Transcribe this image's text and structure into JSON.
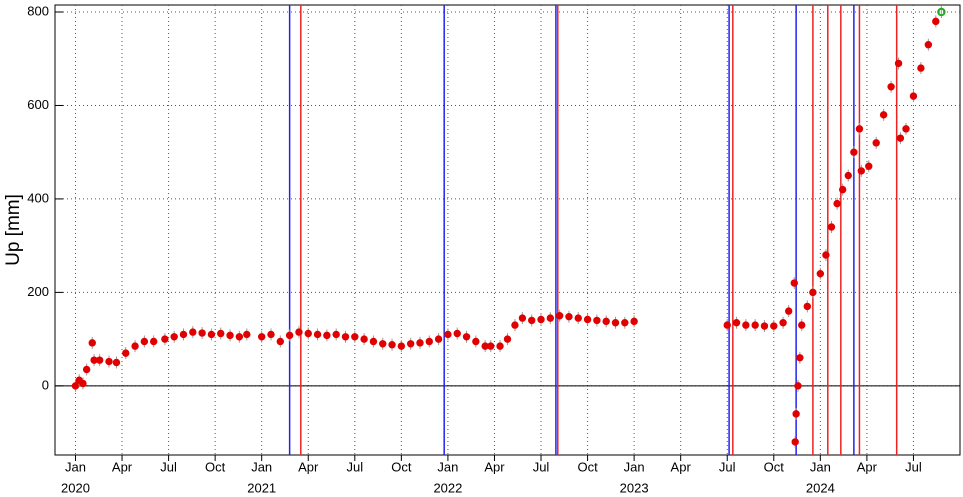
{
  "chart_data": {
    "type": "scatter",
    "y_label": "Up [mm]",
    "x": [
      2020.0,
      2020.02,
      2020.04,
      2020.06,
      2020.09,
      2020.1,
      2020.13,
      2020.18,
      2020.22,
      2020.27,
      2020.32,
      2020.37,
      2020.42,
      2020.48,
      2020.53,
      2020.58,
      2020.63,
      2020.68,
      2020.73,
      2020.78,
      2020.83,
      2020.88,
      2020.92,
      2021.0,
      2021.05,
      2021.1,
      2021.15,
      2021.2,
      2021.25,
      2021.3,
      2021.35,
      2021.4,
      2021.45,
      2021.5,
      2021.55,
      2021.6,
      2021.65,
      2021.7,
      2021.75,
      2021.8,
      2021.85,
      2021.9,
      2021.95,
      2022.0,
      2022.05,
      2022.1,
      2022.15,
      2022.2,
      2022.23,
      2022.28,
      2022.32,
      2022.36,
      2022.4,
      2022.45,
      2022.5,
      2022.55,
      2022.6,
      2022.65,
      2022.7,
      2022.75,
      2022.8,
      2022.85,
      2022.9,
      2022.95,
      2023.0,
      2023.5,
      2023.55,
      2023.6,
      2023.65,
      2023.7,
      2023.75,
      2023.8,
      2023.83,
      2023.86,
      2023.865,
      2023.87,
      2023.88,
      2023.89,
      2023.9,
      2023.93,
      2023.96,
      2024.0,
      2024.03,
      2024.06,
      2024.09,
      2024.12,
      2024.15,
      2024.18,
      2024.21,
      2024.22,
      2024.26,
      2024.3,
      2024.34,
      2024.38,
      2024.42,
      2024.43,
      2024.46,
      2024.5,
      2024.54,
      2024.58,
      2024.62,
      2024.65
    ],
    "values": [
      0,
      12,
      5,
      35,
      92,
      55,
      55,
      52,
      50,
      70,
      85,
      95,
      95,
      100,
      105,
      110,
      115,
      113,
      110,
      112,
      108,
      105,
      110,
      105,
      110,
      95,
      108,
      115,
      112,
      110,
      108,
      110,
      105,
      105,
      100,
      95,
      90,
      88,
      85,
      90,
      92,
      95,
      100,
      110,
      112,
      105,
      95,
      85,
      85,
      85,
      100,
      130,
      145,
      140,
      142,
      145,
      150,
      148,
      145,
      142,
      140,
      138,
      135,
      135,
      138,
      130,
      135,
      130,
      130,
      128,
      128,
      135,
      160,
      220,
      -120,
      -60,
      0,
      60,
      130,
      170,
      200,
      240,
      280,
      340,
      390,
      420,
      450,
      500,
      550,
      460,
      470,
      520,
      580,
      640,
      690,
      530,
      550,
      620,
      680,
      730,
      780,
      800
    ],
    "color": "#e00000",
    "last_point_color": "#22aa22",
    "xlim": [
      2019.89,
      2024.75
    ],
    "ylim": [
      -148,
      815
    ],
    "xticks": [
      {
        "value": 2020.0,
        "label": "Jan"
      },
      {
        "value": 2020.25,
        "label": "Apr"
      },
      {
        "value": 2020.5,
        "label": "Jul"
      },
      {
        "value": 2020.75,
        "label": "Oct"
      },
      {
        "value": 2021.0,
        "label": "Jan"
      },
      {
        "value": 2021.25,
        "label": "Apr"
      },
      {
        "value": 2021.5,
        "label": "Jul"
      },
      {
        "value": 2021.75,
        "label": "Oct"
      },
      {
        "value": 2022.0,
        "label": "Jan"
      },
      {
        "value": 2022.25,
        "label": "Apr"
      },
      {
        "value": 2022.5,
        "label": "Jul"
      },
      {
        "value": 2022.75,
        "label": "Oct"
      },
      {
        "value": 2023.0,
        "label": "Jan"
      },
      {
        "value": 2023.25,
        "label": "Apr"
      },
      {
        "value": 2023.5,
        "label": "Jul"
      },
      {
        "value": 2023.75,
        "label": "Oct"
      },
      {
        "value": 2024.0,
        "label": "Jan"
      },
      {
        "value": 2024.25,
        "label": "Apr"
      },
      {
        "value": 2024.5,
        "label": "Jul"
      }
    ],
    "year_ticks": [
      2020,
      2021,
      2022,
      2023,
      2024
    ],
    "yticks": [
      0,
      200,
      400,
      600,
      800
    ],
    "grid": true,
    "events": [
      {
        "x": 2021.15,
        "color": "#2222ee"
      },
      {
        "x": 2021.21,
        "color": "#ee2222"
      },
      {
        "x": 2021.98,
        "color": "#2222ee"
      },
      {
        "x": 2022.58,
        "color": "#2222ee"
      },
      {
        "x": 2022.59,
        "color": "#ee2222"
      },
      {
        "x": 2023.51,
        "color": "#2222ee"
      },
      {
        "x": 2023.53,
        "color": "#ee2222"
      },
      {
        "x": 2023.87,
        "color": "#2222ee"
      },
      {
        "x": 2023.96,
        "color": "#ee2222"
      },
      {
        "x": 2024.04,
        "color": "#ee2222"
      },
      {
        "x": 2024.11,
        "color": "#ee2222"
      },
      {
        "x": 2024.18,
        "color": "#2222ee"
      },
      {
        "x": 2024.21,
        "color": "#ee2222"
      },
      {
        "x": 2024.41,
        "color": "#ee2222"
      }
    ]
  }
}
